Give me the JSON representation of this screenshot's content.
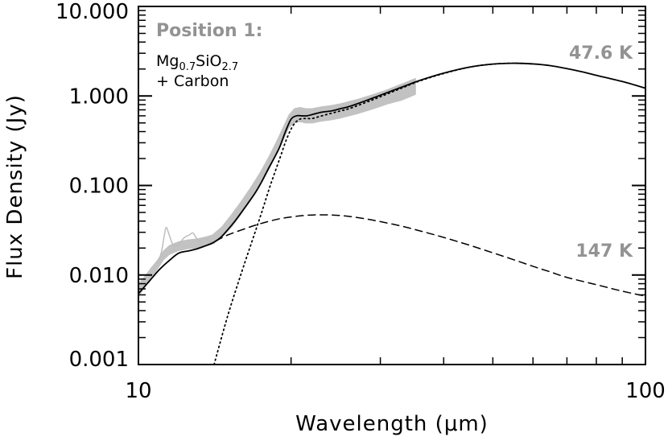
{
  "chart_data": {
    "type": "line",
    "x_scale": "log",
    "y_scale": "log",
    "xlabel": "Wavelength (μm)",
    "ylabel": "Flux Density (Jy)",
    "xlim": [
      10,
      100
    ],
    "ylim": [
      0.001,
      10
    ],
    "x_ticks": [
      {
        "value": 10,
        "label": "10"
      },
      {
        "value": 100,
        "label": "100"
      }
    ],
    "y_ticks": [
      {
        "value": 0.001,
        "label": "0.001"
      },
      {
        "value": 0.01,
        "label": "0.010"
      },
      {
        "value": 0.1,
        "label": "0.100"
      },
      {
        "value": 1,
        "label": "1.000"
      },
      {
        "value": 10,
        "label": "10.000"
      }
    ],
    "annotations": {
      "position_label": "Position 1:",
      "composition_base": "Mg",
      "composition_sub1": "0.7",
      "composition_mid": "SiO",
      "composition_sub2": "2.7",
      "composition_line2": "+ Carbon",
      "temp_cold": "47.6 K",
      "temp_warm": "147 K"
    },
    "series": [
      {
        "name": "Observed spectrum uncertainty",
        "style": "band-gray",
        "x": [
          10.0,
          10.3,
          10.6,
          10.9,
          11.2,
          11.5,
          12.0,
          12.5,
          13.0,
          13.5,
          14.0,
          14.6,
          15.3,
          16.0,
          16.7,
          17.4,
          18.1,
          18.7,
          19.3,
          19.8,
          20.3,
          20.8,
          21.4,
          22.0,
          23.0,
          24.0,
          25.0,
          27.0,
          29.0,
          31.0,
          33.0,
          34.5,
          35.2
        ],
        "y": [
          0.0068,
          0.0084,
          0.0105,
          0.013,
          0.0165,
          0.019,
          0.021,
          0.022,
          0.0225,
          0.0235,
          0.025,
          0.03,
          0.041,
          0.058,
          0.083,
          0.12,
          0.18,
          0.26,
          0.38,
          0.52,
          0.6,
          0.62,
          0.6,
          0.6,
          0.63,
          0.65,
          0.68,
          0.76,
          0.86,
          0.98,
          1.1,
          1.22,
          1.28
        ],
        "band_width_dex": [
          0.07,
          0.06,
          0.06,
          0.05,
          0.05,
          0.05,
          0.05,
          0.05,
          0.05,
          0.05,
          0.05,
          0.06,
          0.07,
          0.07,
          0.07,
          0.07,
          0.07,
          0.07,
          0.07,
          0.07,
          0.08,
          0.08,
          0.08,
          0.08,
          0.08,
          0.08,
          0.08,
          0.08,
          0.08,
          0.08,
          0.09,
          0.09,
          0.09
        ]
      },
      {
        "name": "IRS short-wavelength spectrum",
        "style": "thin-gray",
        "x": [
          10.9,
          11.1,
          11.25,
          11.35,
          11.5,
          11.7,
          12.0,
          12.3,
          12.6,
          12.8,
          13.0,
          13.2,
          13.5,
          13.8,
          14.1
        ],
        "y": [
          0.0135,
          0.018,
          0.028,
          0.034,
          0.028,
          0.022,
          0.022,
          0.026,
          0.028,
          0.0295,
          0.026,
          0.024,
          0.026,
          0.024,
          0.0225
        ]
      },
      {
        "name": "Total model",
        "style": "solid",
        "x": [
          10.0,
          10.5,
          11.0,
          11.5,
          12.0,
          12.5,
          13.0,
          13.5,
          14.0,
          14.5,
          15.0,
          15.5,
          16.0,
          16.5,
          17.0,
          17.5,
          18.0,
          18.5,
          19.0,
          19.5,
          20.0,
          20.5,
          21.0,
          21.5,
          22.0,
          22.5,
          23.0,
          24.0,
          25.0,
          26.0,
          28.0,
          30.0,
          33.0,
          36.0,
          40.0,
          45.0,
          50.0,
          55.0,
          60.0,
          65.0,
          70.0,
          75.0,
          80.0,
          90.0,
          100.0
        ],
        "y": [
          0.0062,
          0.0085,
          0.0115,
          0.0145,
          0.0175,
          0.0185,
          0.0195,
          0.021,
          0.0228,
          0.026,
          0.032,
          0.04,
          0.051,
          0.065,
          0.083,
          0.11,
          0.15,
          0.2,
          0.27,
          0.4,
          0.55,
          0.6,
          0.6,
          0.6,
          0.62,
          0.64,
          0.66,
          0.68,
          0.72,
          0.76,
          0.88,
          1.02,
          1.25,
          1.5,
          1.8,
          2.1,
          2.27,
          2.32,
          2.28,
          2.18,
          2.02,
          1.86,
          1.7,
          1.45,
          1.22
        ]
      },
      {
        "name": "Warm component (147 K)",
        "style": "dashed",
        "x": [
          14.2,
          15.0,
          16.0,
          17.0,
          18.0,
          19.0,
          20.0,
          21.0,
          22.0,
          23.0,
          24.0,
          25.0,
          26.0,
          28.0,
          30.0,
          33.0,
          36.0,
          40.0,
          45.0,
          50.0,
          55.0,
          60.0,
          65.0,
          70.0,
          80.0,
          90.0,
          100.0
        ],
        "y": [
          0.024,
          0.028,
          0.032,
          0.036,
          0.0395,
          0.0425,
          0.0445,
          0.046,
          0.0468,
          0.047,
          0.0468,
          0.0462,
          0.0452,
          0.0425,
          0.0395,
          0.0352,
          0.031,
          0.0263,
          0.0215,
          0.0177,
          0.0148,
          0.0125,
          0.0108,
          0.0094,
          0.0078,
          0.0066,
          0.0058
        ]
      },
      {
        "name": "Cold component (47.6 K)",
        "style": "dotted",
        "x": [
          14.1,
          15.0,
          16.0,
          16.8,
          17.5,
          18.2,
          19.0,
          19.6,
          20.2,
          20.8,
          21.5,
          22.0,
          23.0,
          24.0,
          25.0,
          26.0,
          28.0,
          30.0,
          33.0,
          36.0,
          40.0,
          45.0,
          50.0,
          55.0,
          60.0
        ],
        "y": [
          0.001,
          0.0035,
          0.011,
          0.025,
          0.05,
          0.1,
          0.2,
          0.33,
          0.47,
          0.55,
          0.56,
          0.56,
          0.6,
          0.64,
          0.68,
          0.72,
          0.84,
          0.98,
          1.22,
          1.48,
          1.78,
          2.1,
          2.27,
          2.32,
          2.28
        ]
      }
    ]
  }
}
